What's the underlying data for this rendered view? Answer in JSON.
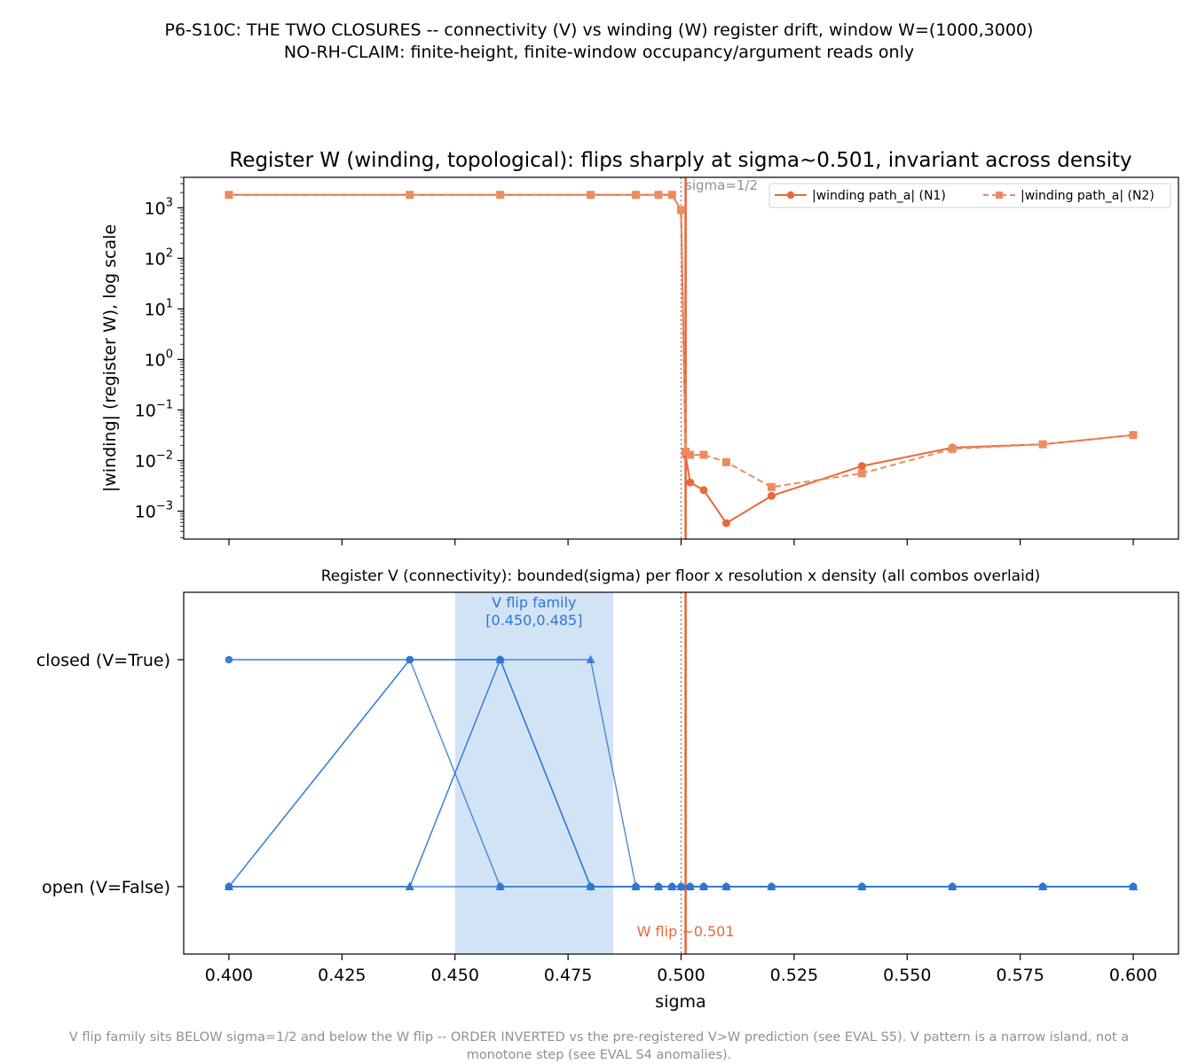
{
  "header": {
    "line1": "P6-S10C: THE TWO CLOSURES -- connectivity (V) vs winding (W) register drift, window W=(1000,3000)",
    "line2": "NO-RH-CLAIM: finite-height, finite-window occupancy/argument reads only"
  },
  "footer": {
    "line1": "V flip family sits BELOW sigma=1/2 and below the W flip -- ORDER INVERTED vs the pre-registered V>W prediction (see EVAL S5). V pattern is a narrow island, not a",
    "line2": "monotone step (see EVAL S4 anomalies)."
  },
  "colors": {
    "w_n1": "#e8693c",
    "w_n2": "#ee8a62",
    "v_series": "#2e77d0",
    "v_band": "#d3e3f6",
    "w_flip": "#e8693c",
    "half": "#808080"
  },
  "chart_data": [
    {
      "type": "line",
      "title": "Register W (winding, topological): flips sharply at sigma~0.501, invariant across density",
      "ylabel": "|winding| (register W), log scale",
      "yscale": "log",
      "xlim": [
        0.39,
        0.61
      ],
      "ylim": [
        0.00028,
        4000
      ],
      "yticks": [
        {
          "value": 0.001,
          "base": "10",
          "exp": "−3"
        },
        {
          "value": 0.01,
          "base": "10",
          "exp": "−2"
        },
        {
          "value": 0.1,
          "base": "10",
          "exp": "−1"
        },
        {
          "value": 1,
          "base": "10",
          "exp": "0"
        },
        {
          "value": 10,
          "base": "10",
          "exp": "1"
        },
        {
          "value": 100,
          "base": "10",
          "exp": "2"
        },
        {
          "value": 1000,
          "base": "10",
          "exp": "3"
        }
      ],
      "legend": {
        "placement": "top-right"
      },
      "series": [
        {
          "name": "|winding path_a| (N1)",
          "style": "solid",
          "marker": "circle",
          "x": [
            0.4,
            0.44,
            0.46,
            0.48,
            0.49,
            0.495,
            0.498,
            0.5,
            0.501,
            0.502,
            0.505,
            0.51,
            0.52,
            0.54,
            0.56,
            0.58,
            0.6
          ],
          "y": [
            1800,
            1800,
            1800,
            1800,
            1800,
            1800,
            1800,
            900,
            0.013,
            0.0037,
            0.0026,
            0.00058,
            0.002,
            0.0078,
            0.018,
            0.021,
            0.032
          ]
        },
        {
          "name": "|winding path_a| (N2)",
          "style": "dashed",
          "marker": "square",
          "x": [
            0.4,
            0.44,
            0.46,
            0.48,
            0.49,
            0.495,
            0.498,
            0.5,
            0.501,
            0.502,
            0.505,
            0.51,
            0.52,
            0.54,
            0.56,
            0.58,
            0.6
          ],
          "y": [
            1800,
            1800,
            1800,
            1800,
            1800,
            1800,
            1800,
            900,
            0.015,
            0.013,
            0.013,
            0.0093,
            0.003,
            0.0056,
            0.017,
            0.021,
            0.032
          ]
        }
      ],
      "reference_lines": {
        "half": {
          "x": 0.5,
          "label": "sigma=1/2"
        },
        "w_flip": {
          "x": 0.501
        }
      }
    },
    {
      "type": "line",
      "title": "Register V (connectivity): bounded(sigma) per floor x resolution x density (all combos overlaid)",
      "xlabel": "sigma",
      "xlim": [
        0.39,
        0.61
      ],
      "xticks": [
        "0.400",
        "0.425",
        "0.450",
        "0.475",
        "0.500",
        "0.525",
        "0.550",
        "0.575",
        "0.600"
      ],
      "yticks": [
        {
          "value": 1,
          "label": "closed (V=True)"
        },
        {
          "value": 0,
          "label": "open (V=False)"
        }
      ],
      "band": {
        "x0": 0.45,
        "x1": 0.485,
        "label_line1": "V flip family",
        "label_line2": "[0.450,0.485]"
      },
      "w_flip": {
        "x": 0.501,
        "label": "W flip ~0.501"
      },
      "half": {
        "x": 0.5
      },
      "series": [
        {
          "marker": "circle",
          "opacity": 0.95,
          "x": [
            0.4,
            0.44,
            0.46,
            0.48,
            0.49,
            0.495,
            0.498,
            0.5,
            0.502,
            0.505,
            0.51,
            0.52,
            0.54,
            0.56,
            0.58,
            0.6
          ],
          "y": [
            1,
            1,
            1,
            0,
            0,
            0,
            0,
            0,
            0,
            0,
            0,
            0,
            0,
            0,
            0,
            0
          ]
        },
        {
          "marker": "circle",
          "opacity": 0.85,
          "x": [
            0.4,
            0.44,
            0.46,
            0.48,
            0.49,
            0.495,
            0.498,
            0.5,
            0.502,
            0.505,
            0.51,
            0.52,
            0.54,
            0.56,
            0.58,
            0.6
          ],
          "y": [
            0,
            1,
            0,
            0,
            0,
            0,
            0,
            0,
            0,
            0,
            0,
            0,
            0,
            0,
            0,
            0
          ]
        },
        {
          "marker": "circle",
          "opacity": 0.85,
          "x": [
            0.4,
            0.44,
            0.46,
            0.48,
            0.49,
            0.495,
            0.498,
            0.5,
            0.502,
            0.505,
            0.51,
            0.52,
            0.54,
            0.56,
            0.58,
            0.6
          ],
          "y": [
            0,
            1,
            1,
            0,
            0,
            0,
            0,
            0,
            0,
            0,
            0,
            0,
            0,
            0,
            0,
            0
          ]
        },
        {
          "marker": "triangle",
          "opacity": 0.85,
          "x": [
            0.4,
            0.44,
            0.46,
            0.48,
            0.49,
            0.495,
            0.498,
            0.5,
            0.502,
            0.505,
            0.51,
            0.52,
            0.54,
            0.56,
            0.58,
            0.6
          ],
          "y": [
            0,
            0,
            1,
            1,
            0,
            0,
            0,
            0,
            0,
            0,
            0,
            0,
            0,
            0,
            0,
            0
          ]
        },
        {
          "marker": "triangle",
          "opacity": 0.55,
          "x": [
            0.4,
            0.44,
            0.46,
            0.48,
            0.49,
            0.495,
            0.498,
            0.5,
            0.502,
            0.505,
            0.51,
            0.52,
            0.54,
            0.56,
            0.58,
            0.6
          ],
          "y": [
            0,
            0,
            1,
            0,
            0,
            0,
            0,
            0,
            0,
            0,
            0,
            0,
            0,
            0,
            0,
            0
          ]
        },
        {
          "marker": "triangle",
          "opacity": 0.9,
          "x": [
            0.4,
            0.44,
            0.46,
            0.48,
            0.49,
            0.495,
            0.498,
            0.5,
            0.502,
            0.505,
            0.51,
            0.52,
            0.54,
            0.56,
            0.58,
            0.6
          ],
          "y": [
            0,
            0,
            0,
            0,
            0,
            0,
            0,
            0,
            0,
            0,
            0,
            0,
            0,
            0,
            0,
            0
          ]
        }
      ]
    }
  ]
}
